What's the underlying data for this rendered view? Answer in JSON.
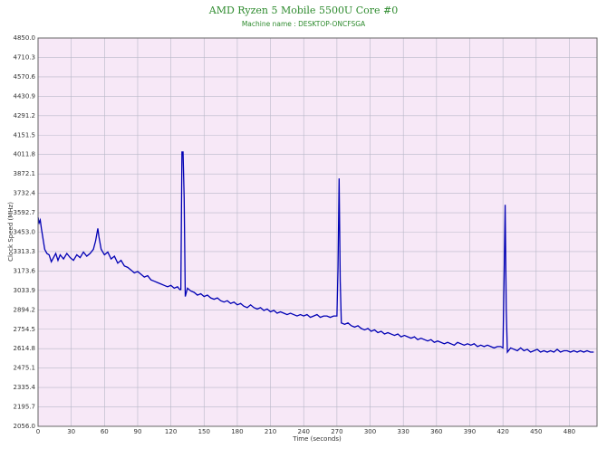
{
  "chart_data": {
    "type": "line",
    "title": "AMD Ryzen 5 Mobile 5500U Core #0",
    "subtitle": "Machine name : DESKTOP-ONCFSGA",
    "x_label": "Time (seconds)",
    "y_label": "Clock Speed (MHz)",
    "color": "#0000b4",
    "background": "#f7e8f7",
    "grid": true,
    "xlim": [
      0,
      505
    ],
    "xticks": [
      0,
      30,
      60,
      90,
      120,
      150,
      180,
      210,
      240,
      270,
      300,
      330,
      360,
      390,
      420,
      450,
      480
    ],
    "ylim": [
      2056,
      4850
    ],
    "yticks": [
      {
        "value": 2056,
        "label": "2056.0"
      },
      2195.7,
      2335.4,
      2475.1,
      2614.8,
      2754.5,
      2894.2,
      3033.9,
      3173.6,
      3313.3,
      {
        "value": 3453,
        "label": "3453.0"
      },
      3592.7,
      3732.4,
      3872.1,
      4011.8,
      4151.5,
      4291.2,
      4430.9,
      4570.6,
      4710.3,
      {
        "value": 4850,
        "label": "4850.0"
      }
    ],
    "x": [
      0,
      1,
      2,
      3,
      4,
      5,
      6,
      8,
      10,
      12,
      14,
      16,
      18,
      20,
      23,
      26,
      29,
      32,
      35,
      38,
      41,
      44,
      47,
      50,
      52,
      54,
      55,
      57,
      60,
      63,
      66,
      69,
      72,
      75,
      78,
      81,
      84,
      87,
      90,
      93,
      96,
      99,
      102,
      105,
      108,
      111,
      114,
      117,
      120,
      123,
      126,
      128,
      129,
      130,
      131,
      132,
      133,
      135,
      138,
      141,
      144,
      147,
      150,
      153,
      156,
      159,
      162,
      165,
      168,
      171,
      174,
      177,
      180,
      183,
      186,
      189,
      192,
      195,
      198,
      201,
      204,
      207,
      210,
      213,
      216,
      219,
      222,
      225,
      228,
      231,
      234,
      237,
      240,
      243,
      246,
      249,
      252,
      255,
      258,
      261,
      264,
      267,
      270,
      271,
      272,
      273,
      274,
      277,
      280,
      283,
      286,
      289,
      292,
      295,
      298,
      301,
      304,
      307,
      310,
      313,
      316,
      319,
      322,
      325,
      328,
      331,
      334,
      337,
      340,
      343,
      346,
      349,
      352,
      355,
      358,
      361,
      364,
      367,
      370,
      373,
      376,
      379,
      382,
      385,
      388,
      391,
      394,
      397,
      400,
      403,
      406,
      409,
      412,
      415,
      418,
      420,
      421,
      422,
      423,
      424,
      427,
      430,
      433,
      436,
      439,
      442,
      445,
      448,
      451,
      454,
      457,
      460,
      463,
      466,
      469,
      472,
      475,
      478,
      481,
      484,
      487,
      490,
      493,
      496,
      499,
      502
    ],
    "values": [
      3560,
      3520,
      3540,
      3480,
      3430,
      3380,
      3330,
      3300,
      3290,
      3240,
      3270,
      3300,
      3250,
      3290,
      3260,
      3300,
      3270,
      3250,
      3290,
      3270,
      3310,
      3280,
      3300,
      3330,
      3390,
      3480,
      3420,
      3330,
      3290,
      3310,
      3260,
      3280,
      3230,
      3250,
      3210,
      3200,
      3180,
      3160,
      3170,
      3150,
      3130,
      3140,
      3110,
      3100,
      3090,
      3080,
      3070,
      3060,
      3070,
      3050,
      3060,
      3040,
      3040,
      4030,
      4030,
      3700,
      2990,
      3050,
      3030,
      3020,
      3000,
      3010,
      2990,
      3000,
      2980,
      2970,
      2980,
      2960,
      2950,
      2960,
      2940,
      2950,
      2930,
      2940,
      2920,
      2910,
      2930,
      2910,
      2900,
      2910,
      2890,
      2900,
      2880,
      2890,
      2870,
      2880,
      2870,
      2860,
      2870,
      2860,
      2850,
      2860,
      2850,
      2860,
      2840,
      2850,
      2860,
      2840,
      2850,
      2850,
      2840,
      2850,
      2850,
      3200,
      3840,
      3100,
      2800,
      2790,
      2800,
      2780,
      2770,
      2780,
      2760,
      2750,
      2760,
      2740,
      2750,
      2730,
      2740,
      2720,
      2730,
      2720,
      2710,
      2720,
      2700,
      2710,
      2700,
      2690,
      2700,
      2680,
      2690,
      2680,
      2670,
      2680,
      2660,
      2670,
      2660,
      2650,
      2660,
      2650,
      2640,
      2660,
      2650,
      2640,
      2650,
      2640,
      2650,
      2630,
      2640,
      2630,
      2640,
      2630,
      2620,
      2630,
      2630,
      2620,
      3100,
      3650,
      2900,
      2590,
      2620,
      2610,
      2600,
      2620,
      2600,
      2610,
      2590,
      2600,
      2610,
      2590,
      2600,
      2590,
      2600,
      2590,
      2610,
      2590,
      2600,
      2600,
      2590,
      2600,
      2590,
      2600,
      2590,
      2600,
      2590,
      2590
    ]
  }
}
